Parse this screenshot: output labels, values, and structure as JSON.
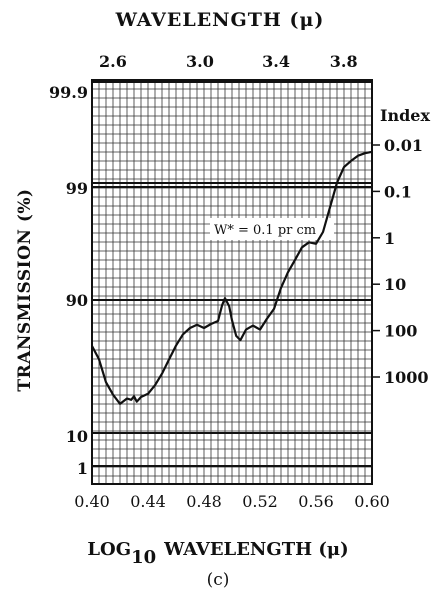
{
  "chart_data": {
    "type": "line",
    "top_title": "WAVELENGTH (μ)",
    "top_ticks": [
      "2.6",
      "3.0",
      "3.4",
      "3.8"
    ],
    "x_label_prefix": "LOG",
    "x_label_sub": "10",
    "x_label_suffix": "WAVELENGTH (μ)",
    "x_ticks": [
      "0.40",
      "0.44",
      "0.48",
      "0.52",
      "0.56",
      "0.60"
    ],
    "xlim": [
      0.4,
      0.6
    ],
    "y_label": "TRANSMISSION (%)",
    "y_ticks": [
      "99.9",
      "99",
      "90",
      "10",
      "1"
    ],
    "right_title": "Index",
    "right_ticks": [
      "0.01",
      "0.1",
      "1",
      "10",
      "100",
      "1000"
    ],
    "ylim_index": [
      0.01,
      1000
    ],
    "annotation": "W* = 0.1 pr cm",
    "caption": "(c)",
    "grid": true,
    "series": [
      {
        "x": [
          0.4,
          0.405,
          0.41,
          0.415,
          0.42,
          0.425,
          0.428,
          0.43,
          0.432,
          0.435,
          0.44,
          0.445,
          0.45,
          0.455,
          0.46,
          0.465,
          0.47,
          0.475,
          0.48,
          0.485,
          0.49,
          0.493,
          0.495,
          0.498,
          0.5,
          0.503,
          0.506,
          0.51,
          0.515,
          0.52,
          0.525,
          0.53,
          0.535,
          0.54,
          0.545,
          0.55,
          0.555,
          0.56,
          0.565,
          0.57,
          0.575,
          0.58,
          0.585,
          0.59,
          0.595,
          0.6
        ],
        "y": [
          215,
          415,
          1300,
          2400,
          3800,
          2900,
          3100,
          2600,
          3400,
          2700,
          2300,
          1500,
          850,
          420,
          210,
          120,
          88,
          75,
          88,
          72,
          62,
          28,
          20,
          30,
          60,
          130,
          160,
          95,
          78,
          95,
          55,
          34,
          12,
          5.5,
          3.0,
          1.6,
          1.25,
          1.35,
          0.75,
          0.22,
          0.065,
          0.03,
          0.022,
          0.017,
          0.015,
          0.014
        ]
      }
    ]
  }
}
